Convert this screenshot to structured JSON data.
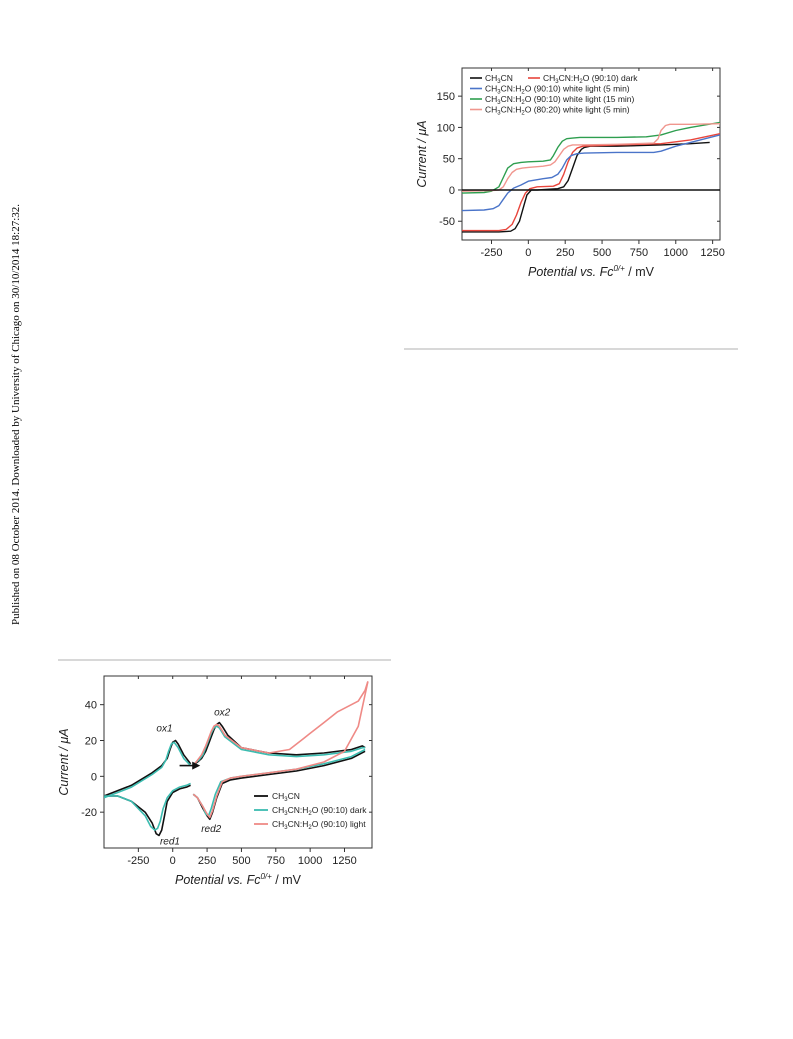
{
  "watermark": "Published on 08 October 2014. Downloaded by University of Chicago on 30/10/2014 18:27:32.",
  "chart_data": [
    {
      "type": "line",
      "title": "",
      "xlabel_html": "<tspan>Potential vs. Fc</tspan><tspan font-size='8' dy='-5'>0/+</tspan><tspan dy='5' font-style='normal'> / mV</tspan>",
      "ylabel": "Current / μA",
      "xlim": [
        -450,
        1300
      ],
      "ylim": [
        -80,
        195
      ],
      "xticks": [
        -250,
        0,
        250,
        500,
        750,
        1000,
        1250
      ],
      "yticks": [
        -50,
        0,
        50,
        100,
        150
      ],
      "legend_position": "top-left",
      "grid": false,
      "series": [
        {
          "name": "CH3CN",
          "label_html": "CH<tspan font-size='6' dy='2'>3</tspan><tspan dy='-2'>CN</tspan>",
          "color": "#111111",
          "x": [
            -450,
            -200,
            -120,
            -90,
            -60,
            -30,
            -10,
            20,
            60,
            200,
            240,
            270,
            300,
            330,
            360,
            380,
            420,
            600,
            900,
            1100,
            1230
          ],
          "y": [
            -67,
            -67,
            -66,
            -62,
            -50,
            -25,
            -8,
            0,
            0,
            2,
            5,
            15,
            35,
            55,
            65,
            68,
            70,
            70,
            72,
            74,
            76
          ]
        },
        {
          "name": "CH3CN:H2O (90:10) dark",
          "label_html": "CH<tspan font-size='6' dy='2'>3</tspan><tspan dy='-2'>CN:H</tspan><tspan font-size='6' dy='2'>2</tspan><tspan dy='-2'>O (90:10) dark</tspan>",
          "color": "#e8453c",
          "x": [
            -450,
            -200,
            -150,
            -110,
            -80,
            -50,
            -20,
            10,
            60,
            170,
            210,
            240,
            270,
            300,
            330,
            370,
            600,
            900,
            1100,
            1300
          ],
          "y": [
            -65,
            -65,
            -63,
            -55,
            -40,
            -20,
            -5,
            2,
            5,
            6,
            10,
            25,
            45,
            60,
            67,
            70,
            72,
            74,
            80,
            90
          ]
        },
        {
          "name": "CH3CN:H2O (90:10) white light (5 min)",
          "label_html": "CH<tspan font-size='6' dy='2'>3</tspan><tspan dy='-2'>CN:H</tspan><tspan font-size='6' dy='2'>2</tspan><tspan dy='-2'>O (90:10) white light (5 min)</tspan>",
          "color": "#4a74c9",
          "x": [
            -450,
            -300,
            -240,
            -200,
            -170,
            -140,
            -100,
            -50,
            0,
            100,
            160,
            200,
            230,
            260,
            290,
            330,
            380,
            600,
            850,
            900,
            950,
            1000,
            1100,
            1300
          ],
          "y": [
            -33,
            -32,
            -30,
            -25,
            -15,
            -5,
            3,
            8,
            14,
            18,
            20,
            25,
            35,
            48,
            55,
            58,
            59,
            60,
            60,
            62,
            66,
            70,
            76,
            88
          ]
        },
        {
          "name": "CH3CN:H2O (90:10) white light (15 min)",
          "label_html": "CH<tspan font-size='6' dy='2'>3</tspan><tspan dy='-2'>CN:H</tspan><tspan font-size='6' dy='2'>2</tspan><tspan dy='-2'>O (90:10) white light (15 min)</tspan>",
          "color": "#2e9e4f",
          "x": [
            -450,
            -300,
            -250,
            -200,
            -170,
            -140,
            -100,
            -50,
            0,
            100,
            150,
            170,
            200,
            230,
            260,
            300,
            350,
            600,
            800,
            900,
            1000,
            1100,
            1300
          ],
          "y": [
            -5,
            -4,
            -2,
            5,
            20,
            35,
            42,
            44,
            45,
            46,
            48,
            55,
            68,
            78,
            82,
            83,
            84,
            84,
            85,
            88,
            95,
            100,
            108
          ]
        },
        {
          "name": "CH3CN:H2O (80:20) white light (5 min)",
          "label_html": "CH<tspan font-size='6' dy='2'>3</tspan><tspan dy='-2'>CN:H</tspan><tspan font-size='6' dy='2'>2</tspan><tspan dy='-2'>O (80:20) white light (5 min)</tspan>",
          "color": "#f0968e",
          "x": [
            -450,
            -250,
            -200,
            -170,
            -140,
            -110,
            -80,
            -40,
            0,
            100,
            150,
            180,
            210,
            240,
            270,
            300,
            350,
            600,
            850,
            880,
            900,
            930,
            960,
            1000,
            1100,
            1300
          ],
          "y": [
            -2,
            -1,
            0,
            5,
            18,
            28,
            33,
            35,
            36,
            38,
            40,
            45,
            55,
            65,
            70,
            72,
            72,
            73,
            75,
            82,
            95,
            103,
            105,
            105,
            105,
            106
          ]
        },
        {
          "name": "",
          "color": "#111111",
          "x": [
            -450,
            1300
          ],
          "y": [
            0,
            0
          ]
        }
      ]
    },
    {
      "type": "line",
      "title": "",
      "xlabel_html": "<tspan>Potential vs. Fc</tspan><tspan font-size='8' dy='-5'>0/+</tspan><tspan dy='5' font-style='normal'> / mV</tspan>",
      "ylabel": "Current / μA",
      "xlim": [
        -500,
        1450
      ],
      "ylim": [
        -40,
        56
      ],
      "xticks": [
        -250,
        0,
        250,
        500,
        750,
        1000,
        1250
      ],
      "yticks": [
        -20,
        0,
        20,
        40
      ],
      "legend_position": "bottom-right",
      "grid": false,
      "annotations": [
        "ox1",
        "ox2",
        "red1",
        "red2"
      ],
      "series": [
        {
          "name": "CH3CN",
          "label_html": "CH<tspan font-size='6' dy='2'>3</tspan><tspan dy='-2'>CN</tspan>",
          "color": "#111111",
          "segments": [
            {
              "x": [
                -500,
                -400,
                -300,
                -200,
                -150,
                -120,
                -100,
                -80,
                -60,
                -40,
                0,
                50,
                100,
                130
              ],
              "y": [
                -11,
                -11,
                -14,
                -20,
                -26,
                -32,
                -33,
                -30,
                -22,
                -14,
                -9,
                -7,
                -6,
                -5
              ]
            },
            {
              "x": [
                130,
                80,
                40,
                20,
                0,
                -20,
                -40,
                -80,
                -150,
                -300,
                -500
              ],
              "y": [
                7,
                12,
                18,
                20,
                19,
                15,
                10,
                6,
                2,
                -5,
                -11
              ]
            },
            {
              "x": [
                150,
                180,
                220,
                250,
                270,
                290,
                320,
                360,
                420,
                500,
                700,
                900,
                1100,
                1300,
                1400
              ],
              "y": [
                -10,
                -12,
                -18,
                -22,
                -24,
                -20,
                -12,
                -4,
                -2,
                -1,
                1,
                3,
                6,
                10,
                14
              ]
            },
            {
              "x": [
                1400,
                1380,
                1300,
                1100,
                900,
                700,
                500,
                400,
                360,
                340,
                320,
                300,
                280,
                260,
                240,
                210,
                180,
                160
              ],
              "y": [
                16,
                17,
                15,
                13,
                12,
                13,
                16,
                23,
                28,
                30,
                29,
                26,
                22,
                18,
                14,
                10,
                8,
                7
              ]
            }
          ]
        },
        {
          "name": "CH3CN:H2O (90:10) dark",
          "label_html": "CH<tspan font-size='6' dy='2'>3</tspan><tspan dy='-2'>CN:H</tspan><tspan font-size='6' dy='2'>2</tspan><tspan dy='-2'>O (90:10) dark</tspan>",
          "color": "#3bbcb0",
          "segments": [
            {
              "x": [
                -500,
                -400,
                -300,
                -200,
                -160,
                -130,
                -110,
                -90,
                -70,
                -40,
                0,
                50,
                100,
                130
              ],
              "y": [
                -11,
                -11,
                -14,
                -22,
                -28,
                -30,
                -29,
                -25,
                -18,
                -12,
                -8,
                -6,
                -5,
                -4
              ]
            },
            {
              "x": [
                130,
                80,
                40,
                10,
                -10,
                -30,
                -50,
                -80,
                -150,
                -300,
                -500
              ],
              "y": [
                6,
                10,
                16,
                19,
                18,
                14,
                9,
                5,
                1,
                -6,
                -12
              ]
            },
            {
              "x": [
                150,
                180,
                220,
                240,
                260,
                280,
                310,
                350,
                420,
                500,
                700,
                900,
                1100,
                1300,
                1400
              ],
              "y": [
                -10,
                -12,
                -17,
                -21,
                -22,
                -18,
                -10,
                -3,
                -1,
                0,
                2,
                4,
                7,
                11,
                15
              ]
            },
            {
              "x": [
                1400,
                1380,
                1300,
                1100,
                900,
                700,
                500,
                380,
                340,
                320,
                300,
                280,
                260,
                240,
                220,
                190,
                170,
                160
              ],
              "y": [
                16,
                16,
                14,
                12,
                11,
                12,
                15,
                22,
                27,
                28,
                27,
                24,
                20,
                16,
                12,
                9,
                8,
                7
              ]
            }
          ]
        },
        {
          "name": "CH3CN:H2O (90:10) light",
          "label_html": "CH<tspan font-size='6' dy='2'>3</tspan><tspan dy='-2'>CN:H</tspan><tspan font-size='6' dy='2'>2</tspan><tspan dy='-2'>O (90:10) light</tspan>",
          "color": "#ef8a86",
          "segments": [
            {
              "x": [
                150,
                180,
                220,
                250,
                270,
                290,
                320,
                360,
                420,
                500,
                700,
                900,
                1100,
                1250,
                1350,
                1420
              ],
              "y": [
                -10,
                -12,
                -17,
                -21,
                -23,
                -19,
                -11,
                -3,
                -1,
                0,
                2,
                4,
                8,
                14,
                28,
                53
              ]
            },
            {
              "x": [
                1420,
                1400,
                1350,
                1200,
                1100,
                1000,
                950,
                900,
                850,
                700,
                500,
                380,
                340,
                320,
                300,
                280,
                260,
                240,
                210,
                180,
                160
              ],
              "y": [
                53,
                48,
                42,
                36,
                30,
                24,
                21,
                18,
                15,
                13,
                16,
                23,
                28,
                29,
                28,
                25,
                21,
                17,
                12,
                9,
                7
              ]
            }
          ]
        }
      ],
      "scan_direction_arrow": {
        "x_start": 50,
        "x_end": 200,
        "y": 6
      }
    }
  ],
  "figure1": {
    "peak_labels": [
      {
        "text": "ox1",
        "x": -60,
        "y": 25
      },
      {
        "text": "ox2",
        "x": 360,
        "y": 34
      },
      {
        "text": "red1",
        "x": -20,
        "y": -38
      },
      {
        "text": "red2",
        "x": 280,
        "y": -31
      }
    ]
  }
}
